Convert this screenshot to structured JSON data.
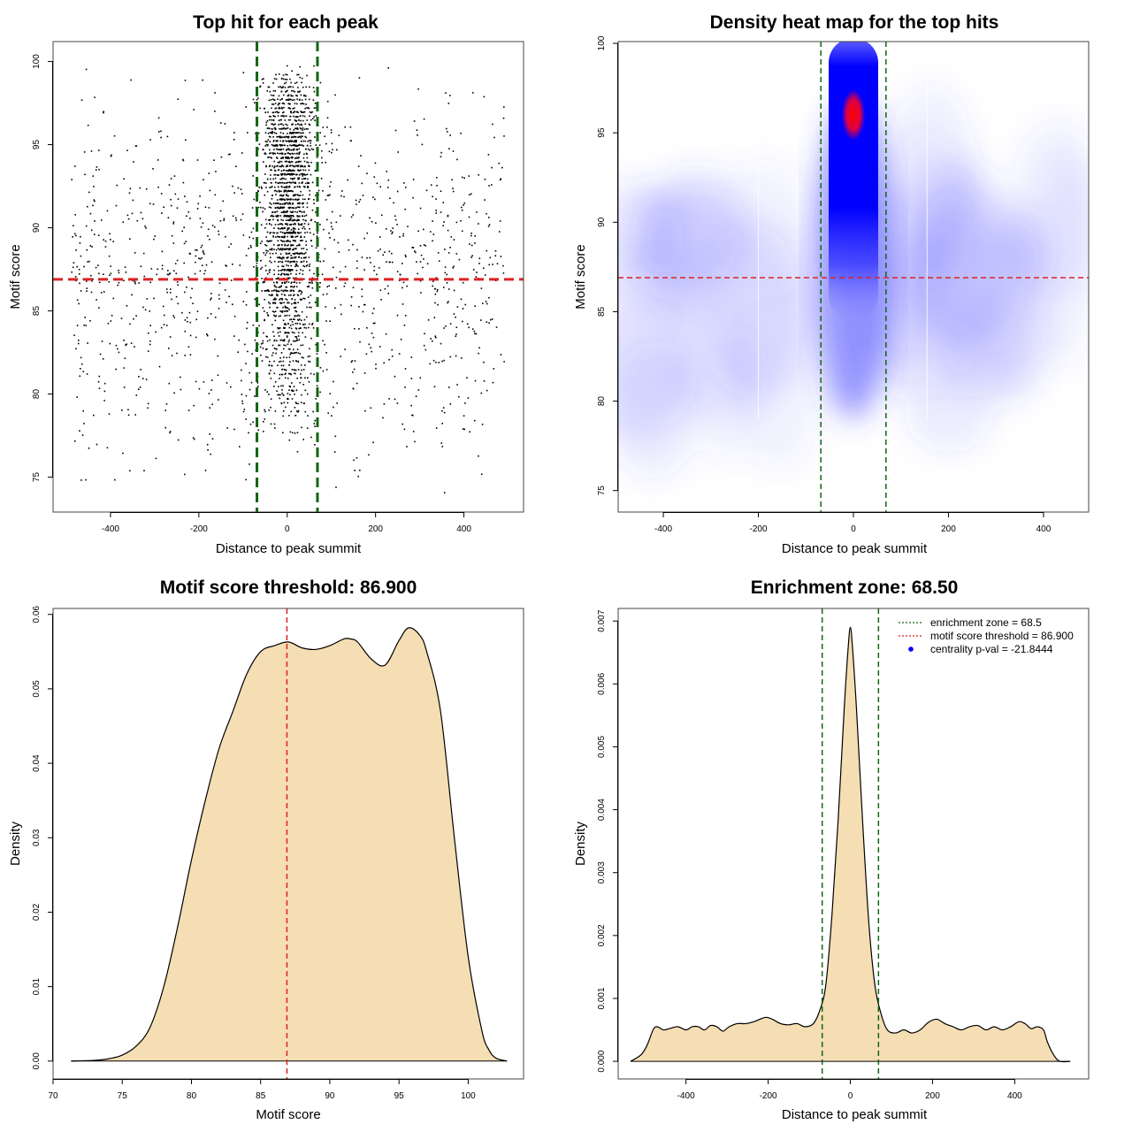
{
  "colors": {
    "threshold_line": "#dd2222",
    "zone_line": "#116611",
    "points": "#000000",
    "fill": "#f5deb3",
    "heat_low": "#ffffff",
    "heat_mid": "#0000ff",
    "heat_high": "#ff0000"
  },
  "chart_data": [
    {
      "type": "scatter",
      "title": "Top hit for each peak",
      "xlabel": "Distance to peak summit",
      "ylabel": "Motif score",
      "xlim": [
        -530,
        535
      ],
      "ylim": [
        72.9,
        101.2
      ],
      "xticks": [
        -400,
        -200,
        0,
        200,
        400
      ],
      "yticks": [
        75,
        80,
        85,
        90,
        95,
        100
      ],
      "xtick_labels": [
        "-400",
        "-200",
        "0",
        "200",
        "400"
      ],
      "ytick_labels": [
        "75",
        "80",
        "85",
        "90",
        "95",
        "100"
      ],
      "vlines": [
        -68.5,
        68.5
      ],
      "hline": 86.9,
      "background_points": {
        "n": 1150,
        "x_range": [
          -490,
          490
        ],
        "y_mode": 88,
        "y_range": [
          73.8,
          100
        ]
      },
      "central_points": {
        "n": 1900,
        "x_sd": 28,
        "y_mode": 95,
        "y_range": [
          77,
          100
        ]
      }
    },
    {
      "type": "heatmap",
      "title": "Density heat map for the top hits",
      "xlabel": "Distance to peak summit",
      "ylabel": "Motif score",
      "xlim": [
        -495,
        495
      ],
      "ylim": [
        73.8,
        100.1
      ],
      "xticks": [
        -400,
        -200,
        0,
        200,
        400
      ],
      "yticks": [
        75,
        80,
        85,
        90,
        95,
        100
      ],
      "xtick_labels": [
        "-400",
        "-200",
        "0",
        "200",
        "400"
      ],
      "ytick_labels": [
        "75",
        "80",
        "85",
        "90",
        "95",
        "100"
      ],
      "vlines": [
        -68.5,
        68.5
      ],
      "hline": 86.9,
      "hotspot": {
        "x": 0,
        "y": 96,
        "x_sd": 25
      },
      "color_scale": [
        "white",
        "blue",
        "red"
      ]
    },
    {
      "type": "area",
      "title": "Motif score threshold: 86.900",
      "xlabel": "Motif score",
      "ylabel": "Density",
      "xlim": [
        70,
        104
      ],
      "ylim": [
        -0.0024,
        0.0608
      ],
      "xticks": [
        70,
        75,
        80,
        85,
        90,
        95,
        100
      ],
      "yticks": [
        0,
        0.01,
        0.02,
        0.03,
        0.04,
        0.05,
        0.06
      ],
      "xtick_labels": [
        "70",
        "75",
        "80",
        "85",
        "90",
        "95",
        "100"
      ],
      "ytick_labels": [
        "0.00",
        "0.01",
        "0.02",
        "0.03",
        "0.04",
        "0.05",
        "0.06"
      ],
      "vline": 86.9,
      "x": [
        71.3,
        73,
        74,
        75,
        76,
        77,
        78,
        79,
        80,
        81,
        82,
        83,
        84,
        85,
        86,
        87,
        88,
        89,
        90,
        91,
        91.5,
        92,
        93,
        94,
        95,
        95.7,
        96.5,
        97,
        98,
        99,
        100,
        101,
        101.5,
        102,
        102.8
      ],
      "y": [
        0.0,
        0.0001,
        0.0003,
        0.0008,
        0.002,
        0.0045,
        0.01,
        0.018,
        0.027,
        0.035,
        0.042,
        0.047,
        0.052,
        0.055,
        0.0558,
        0.0563,
        0.0555,
        0.0553,
        0.0558,
        0.0567,
        0.0567,
        0.0563,
        0.054,
        0.0532,
        0.0565,
        0.0582,
        0.0572,
        0.055,
        0.047,
        0.03,
        0.014,
        0.004,
        0.0015,
        0.0004,
        0.0
      ]
    },
    {
      "type": "area",
      "title": "Enrichment zone: 68.50",
      "xlabel": "Distance to peak summit",
      "ylabel": "Density",
      "xlim": [
        -565,
        580
      ],
      "ylim": [
        -0.00028,
        0.0072
      ],
      "xticks": [
        -400,
        -200,
        0,
        200,
        400
      ],
      "yticks": [
        0,
        0.001,
        0.002,
        0.003,
        0.004,
        0.005,
        0.006,
        0.007
      ],
      "xtick_labels": [
        "-400",
        "-200",
        "0",
        "200",
        "400"
      ],
      "ytick_labels": [
        "0.000",
        "0.001",
        "0.002",
        "0.003",
        "0.004",
        "0.005",
        "0.006",
        "0.007"
      ],
      "vlines": [
        -68.5,
        68.5
      ],
      "x": [
        -535,
        -510,
        -495,
        -480,
        -470,
        -455,
        -440,
        -420,
        -400,
        -385,
        -370,
        -355,
        -340,
        -325,
        -310,
        -295,
        -275,
        -255,
        -235,
        -220,
        -205,
        -190,
        -170,
        -150,
        -130,
        -110,
        -90,
        -75,
        -60,
        -45,
        -30,
        -15,
        -5,
        0,
        5,
        15,
        30,
        45,
        60,
        75,
        90,
        110,
        130,
        150,
        170,
        190,
        210,
        230,
        250,
        270,
        290,
        310,
        330,
        350,
        370,
        390,
        410,
        425,
        440,
        455,
        470,
        480,
        495,
        510,
        535
      ],
      "y": [
        0.0,
        0.0001,
        0.00025,
        0.0005,
        0.00055,
        0.0005,
        0.00052,
        0.00055,
        0.0005,
        0.00055,
        0.00055,
        0.0005,
        0.00057,
        0.00055,
        0.00048,
        0.00055,
        0.0006,
        0.0006,
        0.00063,
        0.00067,
        0.0007,
        0.00067,
        0.0006,
        0.00058,
        0.0006,
        0.00055,
        0.0006,
        0.0008,
        0.0012,
        0.0023,
        0.0038,
        0.0056,
        0.0066,
        0.0069,
        0.0066,
        0.0056,
        0.0038,
        0.0022,
        0.0012,
        0.00075,
        0.0005,
        0.00045,
        0.0005,
        0.00045,
        0.0005,
        0.00062,
        0.00067,
        0.0006,
        0.00055,
        0.0005,
        0.00055,
        0.00057,
        0.0005,
        0.00055,
        0.0005,
        0.00055,
        0.00063,
        0.0006,
        0.00052,
        0.00055,
        0.0005,
        0.0003,
        0.0001,
        0.0,
        0.0
      ],
      "legend": {
        "position": "top-right",
        "entries": [
          {
            "label": "enrichment zone = 68.5",
            "style": "dotted-green"
          },
          {
            "label": "motif score threshold = 86.900",
            "style": "dotted-red"
          },
          {
            "label": "centrality p-val = -21.8444",
            "style": "blue-dot"
          }
        ]
      }
    }
  ]
}
